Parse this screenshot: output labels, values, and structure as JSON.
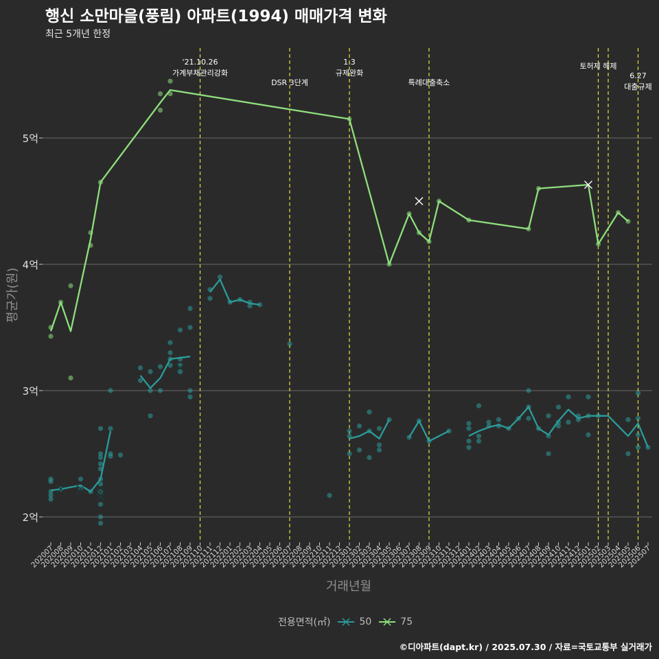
{
  "header": {
    "title": "행신 소만마을(풍림) 아파트(1994) 매매가격 변화",
    "subtitle": "최근 5개년 한정"
  },
  "caption": "©디아파트(dapt.kr) / 2025.07.30 / 자료=국토교통부 실거래가",
  "legend": {
    "title": "전용면적(㎡)",
    "items": [
      {
        "label": "50",
        "color": "#2a9d9a"
      },
      {
        "label": "75",
        "color": "#8ee07c"
      }
    ]
  },
  "colors": {
    "background": "#2b2a2b",
    "grid": "#6a6a6a",
    "event_line": "#e1e43a",
    "text": "#ffffff",
    "axis_title": "#8f8f8f"
  },
  "chart_data": {
    "type": "line",
    "xlabel": "거래년월",
    "ylabel": "평균가(원)",
    "ylim": [
      1.8,
      5.9
    ],
    "y_ticks": [
      {
        "value": 2,
        "label": "2억"
      },
      {
        "value": 3,
        "label": "3억"
      },
      {
        "value": 4,
        "label": "4억"
      },
      {
        "value": 5,
        "label": "5억"
      }
    ],
    "x_categories": [
      "202007",
      "202008",
      "202009",
      "202010",
      "202011",
      "202012",
      "202101",
      "202102",
      "202103",
      "202104",
      "202105",
      "202106",
      "202107",
      "202108",
      "202109",
      "202110",
      "202111",
      "202112",
      "202201",
      "202202",
      "202203",
      "202204",
      "202205",
      "202206",
      "202207",
      "202208",
      "202209",
      "202210",
      "202211",
      "202212",
      "202301",
      "202302",
      "202303",
      "202304",
      "202305",
      "202306",
      "202307",
      "202308",
      "202309",
      "202310",
      "202311",
      "202312",
      "202401",
      "202402",
      "202403",
      "202404",
      "202405",
      "202406",
      "202407",
      "202408",
      "202409",
      "202410",
      "202411",
      "202412",
      "202501",
      "202502",
      "202503",
      "202504",
      "202505",
      "202506",
      "202507"
    ],
    "events": [
      {
        "x": "202110",
        "labels": [
          "'21.10.26",
          "가계부채관리강화"
        ],
        "row": 0
      },
      {
        "x": "202207",
        "labels": [
          "DSR 3단계"
        ],
        "row": 1
      },
      {
        "x": "202301",
        "labels": [
          "1.3",
          "규제완화"
        ],
        "row": 0
      },
      {
        "x": "202309",
        "labels": [
          "특례대출축소"
        ],
        "row": 1
      },
      {
        "x": "202502",
        "labels": [
          "토허제 해제"
        ],
        "row": 0
      },
      {
        "x": "202503",
        "labels": [],
        "row": 0
      },
      {
        "x": "202506",
        "labels": [
          "6.27",
          "대출규제"
        ],
        "row": 2
      }
    ],
    "series": [
      {
        "name": "50",
        "color": "#2a9d9a",
        "line_segments": [
          [
            [
              "202007",
              2.21
            ],
            [
              "202008",
              2.22
            ],
            [
              "202010",
              2.25
            ],
            [
              "202011",
              2.2
            ],
            [
              "202012",
              2.3
            ],
            [
              "202101",
              2.68
            ]
          ],
          [
            [
              "202104",
              3.12
            ],
            [
              "202105",
              3.02
            ],
            [
              "202106",
              3.1
            ],
            [
              "202107",
              3.25
            ],
            [
              "202108",
              3.26
            ],
            [
              "202109",
              3.27
            ]
          ],
          [
            [
              "202111",
              3.78
            ],
            [
              "202112",
              3.88
            ],
            [
              "202201",
              3.7
            ],
            [
              "202202",
              3.72
            ],
            [
              "202203",
              3.69
            ],
            [
              "202204",
              3.68
            ]
          ],
          [
            [
              "202301",
              2.62
            ],
            [
              "202302",
              2.64
            ],
            [
              "202303",
              2.68
            ],
            [
              "202304",
              2.62
            ],
            [
              "202305",
              2.77
            ]
          ],
          [
            [
              "202307",
              2.63
            ],
            [
              "202308",
              2.76
            ],
            [
              "202309",
              2.6
            ],
            [
              "202311",
              2.68
            ]
          ],
          [
            [
              "202401",
              2.64
            ],
            [
              "202402",
              2.68
            ],
            [
              "202403",
              2.71
            ],
            [
              "202404",
              2.73
            ],
            [
              "202405",
              2.7
            ],
            [
              "202406",
              2.78
            ],
            [
              "202407",
              2.87
            ],
            [
              "202408",
              2.7
            ],
            [
              "202409",
              2.65
            ],
            [
              "202410",
              2.76
            ],
            [
              "202411",
              2.85
            ],
            [
              "202412",
              2.78
            ],
            [
              "202501",
              2.8
            ],
            [
              "202502",
              2.8
            ],
            [
              "202503",
              2.8
            ],
            [
              "202505",
              2.64
            ],
            [
              "202506",
              2.74
            ],
            [
              "202507",
              2.55
            ]
          ]
        ],
        "points": [
          [
            "202007",
            2.3
          ],
          [
            "202007",
            2.28
          ],
          [
            "202007",
            2.2
          ],
          [
            "202007",
            2.17
          ],
          [
            "202007",
            2.14
          ],
          [
            "202008",
            2.22
          ],
          [
            "202010",
            2.3
          ],
          [
            "202010",
            2.23
          ],
          [
            "202011",
            2.2
          ],
          [
            "202012",
            2.7
          ],
          [
            "202012",
            2.5
          ],
          [
            "202012",
            2.47
          ],
          [
            "202012",
            2.42
          ],
          [
            "202012",
            2.38
          ],
          [
            "202012",
            2.3
          ],
          [
            "202012",
            2.26
          ],
          [
            "202012",
            2.2
          ],
          [
            "202012",
            2.1
          ],
          [
            "202012",
            2.0
          ],
          [
            "202012",
            1.95
          ],
          [
            "202101",
            3.0
          ],
          [
            "202101",
            2.7
          ],
          [
            "202101",
            2.5
          ],
          [
            "202101",
            2.48
          ],
          [
            "202102",
            2.49
          ],
          [
            "202104",
            3.18
          ],
          [
            "202104",
            3.08
          ],
          [
            "202105",
            3.15
          ],
          [
            "202105",
            3.0
          ],
          [
            "202105",
            2.8
          ],
          [
            "202106",
            3.19
          ],
          [
            "202106",
            3.0
          ],
          [
            "202107",
            3.38
          ],
          [
            "202107",
            3.3
          ],
          [
            "202107",
            3.25
          ],
          [
            "202107",
            3.2
          ],
          [
            "202108",
            3.48
          ],
          [
            "202108",
            3.25
          ],
          [
            "202108",
            3.2
          ],
          [
            "202108",
            3.15
          ],
          [
            "202109",
            3.65
          ],
          [
            "202109",
            3.5
          ],
          [
            "202109",
            3.0
          ],
          [
            "202109",
            2.95
          ],
          [
            "202111",
            3.8
          ],
          [
            "202111",
            3.73
          ],
          [
            "202112",
            3.9
          ],
          [
            "202201",
            3.7
          ],
          [
            "202202",
            3.72
          ],
          [
            "202203",
            3.7
          ],
          [
            "202203",
            3.67
          ],
          [
            "202204",
            3.68
          ],
          [
            "202207",
            3.37
          ],
          [
            "202211",
            2.17
          ],
          [
            "202301",
            2.68
          ],
          [
            "202301",
            2.64
          ],
          [
            "202301",
            2.5
          ],
          [
            "202302",
            2.72
          ],
          [
            "202302",
            2.53
          ],
          [
            "202303",
            2.83
          ],
          [
            "202303",
            2.68
          ],
          [
            "202303",
            2.47
          ],
          [
            "202304",
            2.7
          ],
          [
            "202304",
            2.57
          ],
          [
            "202304",
            2.53
          ],
          [
            "202305",
            2.77
          ],
          [
            "202307",
            2.63
          ],
          [
            "202308",
            2.76
          ],
          [
            "202309",
            2.6
          ],
          [
            "202311",
            2.68
          ],
          [
            "202401",
            2.74
          ],
          [
            "202401",
            2.7
          ],
          [
            "202401",
            2.6
          ],
          [
            "202401",
            2.55
          ],
          [
            "202402",
            2.88
          ],
          [
            "202402",
            2.64
          ],
          [
            "202402",
            2.6
          ],
          [
            "202403",
            2.75
          ],
          [
            "202403",
            2.72
          ],
          [
            "202404",
            2.77
          ],
          [
            "202404",
            2.72
          ],
          [
            "202405",
            2.7
          ],
          [
            "202406",
            2.78
          ],
          [
            "202407",
            3.0
          ],
          [
            "202407",
            2.87
          ],
          [
            "202407",
            2.78
          ],
          [
            "202408",
            2.7
          ],
          [
            "202409",
            2.8
          ],
          [
            "202409",
            2.64
          ],
          [
            "202409",
            2.5
          ],
          [
            "202410",
            2.87
          ],
          [
            "202410",
            2.75
          ],
          [
            "202410",
            2.72
          ],
          [
            "202411",
            2.95
          ],
          [
            "202411",
            2.75
          ],
          [
            "202412",
            2.8
          ],
          [
            "202412",
            2.77
          ],
          [
            "202501",
            2.95
          ],
          [
            "202501",
            2.8
          ],
          [
            "202501",
            2.65
          ],
          [
            "202502",
            2.8
          ],
          [
            "202505",
            2.77
          ],
          [
            "202505",
            2.5
          ],
          [
            "202506",
            2.98
          ],
          [
            "202506",
            2.78
          ],
          [
            "202506",
            2.65
          ],
          [
            "202506",
            2.55
          ],
          [
            "202507",
            2.55
          ]
        ],
        "cross_points": [
          [
            "202008",
            2.22
          ],
          [
            "202010",
            2.22
          ],
          [
            "202012",
            2.2
          ],
          [
            "202012",
            2.16
          ],
          [
            "202108",
            3.18
          ]
        ]
      },
      {
        "name": "75",
        "color": "#8ee07c",
        "line_segments": [
          [
            [
              "202007",
              3.47
            ],
            [
              "202008",
              3.7
            ],
            [
              "202009",
              3.47
            ],
            [
              "202011",
              4.2
            ],
            [
              "202012",
              4.65
            ],
            [
              "202106",
              5.28
            ],
            [
              "202107",
              5.38
            ],
            [
              "202301",
              5.15
            ],
            [
              "202305",
              4.0
            ],
            [
              "202307",
              4.4
            ],
            [
              "202308",
              4.25
            ],
            [
              "202309",
              4.18
            ],
            [
              "202310",
              4.5
            ],
            [
              "202401",
              4.35
            ],
            [
              "202407",
              4.28
            ],
            [
              "202408",
              4.6
            ],
            [
              "202501",
              4.63
            ],
            [
              "202502",
              4.16
            ],
            [
              "202504",
              4.41
            ],
            [
              "202505",
              4.34
            ]
          ]
        ],
        "points": [
          [
            "202007",
            3.5
          ],
          [
            "202007",
            3.43
          ],
          [
            "202008",
            3.7
          ],
          [
            "202009",
            3.83
          ],
          [
            "202009",
            3.1
          ],
          [
            "202011",
            4.25
          ],
          [
            "202011",
            4.15
          ],
          [
            "202012",
            4.65
          ],
          [
            "202106",
            5.35
          ],
          [
            "202106",
            5.22
          ],
          [
            "202107",
            5.45
          ],
          [
            "202107",
            5.35
          ],
          [
            "202301",
            5.15
          ],
          [
            "202305",
            4.0
          ],
          [
            "202307",
            4.4
          ],
          [
            "202308",
            4.25
          ],
          [
            "202309",
            4.18
          ],
          [
            "202310",
            4.5
          ],
          [
            "202401",
            4.35
          ],
          [
            "202407",
            4.28
          ],
          [
            "202408",
            4.6
          ],
          [
            "202502",
            4.16
          ],
          [
            "202504",
            4.41
          ],
          [
            "202505",
            4.34
          ]
        ],
        "cross_points": [
          [
            "202308",
            4.5
          ],
          [
            "202501",
            4.63
          ]
        ]
      }
    ]
  }
}
